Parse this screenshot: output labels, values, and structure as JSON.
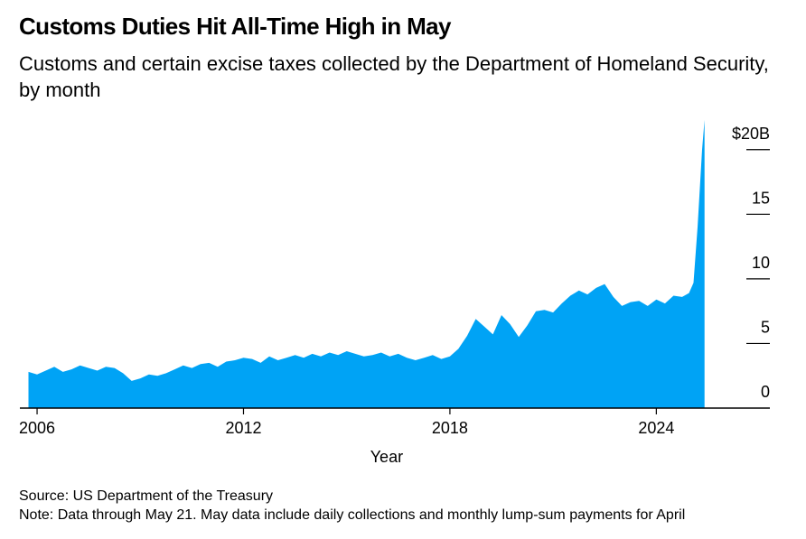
{
  "chart_data": {
    "type": "area",
    "title": "Customs Duties Hit All-Time High in May",
    "subtitle": "Customs and certain excise taxes collected by the Department of Homeland Security, by month",
    "xlabel": "Year",
    "ylabel": "",
    "x_ticks": [
      {
        "value": 2006,
        "label": "2006"
      },
      {
        "value": 2012,
        "label": "2012"
      },
      {
        "value": 2018,
        "label": "2018"
      },
      {
        "value": 2024,
        "label": "2024"
      }
    ],
    "y_ticks": [
      {
        "value": 0,
        "label": "0"
      },
      {
        "value": 5,
        "label": "5"
      },
      {
        "value": 10,
        "label": "10"
      },
      {
        "value": 15,
        "label": "15"
      },
      {
        "value": 20,
        "label": "$20B"
      }
    ],
    "xlim": [
      2005.5,
      2027.3
    ],
    "ylim": [
      0,
      22.5
    ],
    "grid": false,
    "color": "#00a3f5",
    "series": [
      {
        "x": [
          2005.75,
          2006.0,
          2006.25,
          2006.5,
          2006.75,
          2007.0,
          2007.25,
          2007.5,
          2007.75,
          2008.0,
          2008.25,
          2008.5,
          2008.75,
          2009.0,
          2009.25,
          2009.5,
          2009.75,
          2010.0,
          2010.25,
          2010.5,
          2010.75,
          2011.0,
          2011.25,
          2011.5,
          2011.75,
          2012.0,
          2012.25,
          2012.5,
          2012.75,
          2013.0,
          2013.25,
          2013.5,
          2013.75,
          2014.0,
          2014.25,
          2014.5,
          2014.75,
          2015.0,
          2015.25,
          2015.5,
          2015.75,
          2016.0,
          2016.25,
          2016.5,
          2016.75,
          2017.0,
          2017.25,
          2017.5,
          2017.75,
          2018.0,
          2018.25,
          2018.5,
          2018.75,
          2019.0,
          2019.25,
          2019.5,
          2019.75,
          2020.0,
          2020.25,
          2020.5,
          2020.75,
          2021.0,
          2021.25,
          2021.5,
          2021.75,
          2022.0,
          2022.25,
          2022.5,
          2022.75,
          2023.0,
          2023.25,
          2023.5,
          2023.75,
          2024.0,
          2024.25,
          2024.5,
          2024.75,
          2024.95,
          2025.08,
          2025.2,
          2025.33,
          2025.4
        ],
        "values": [
          2.8,
          2.6,
          2.9,
          3.2,
          2.8,
          3.0,
          3.3,
          3.1,
          2.9,
          3.2,
          3.1,
          2.7,
          2.1,
          2.3,
          2.6,
          2.5,
          2.7,
          3.0,
          3.3,
          3.1,
          3.4,
          3.5,
          3.2,
          3.6,
          3.7,
          3.9,
          3.8,
          3.5,
          4.0,
          3.7,
          3.9,
          4.1,
          3.9,
          4.2,
          4.0,
          4.3,
          4.1,
          4.4,
          4.2,
          4.0,
          4.1,
          4.3,
          4.0,
          4.2,
          3.9,
          3.7,
          3.9,
          4.1,
          3.8,
          4.0,
          4.6,
          5.6,
          6.9,
          6.3,
          5.7,
          7.2,
          6.5,
          5.5,
          6.4,
          7.5,
          7.6,
          7.4,
          8.1,
          8.7,
          9.1,
          8.8,
          9.3,
          9.6,
          8.6,
          7.9,
          8.2,
          8.3,
          7.9,
          8.4,
          8.1,
          8.7,
          8.6,
          8.9,
          9.7,
          14.0,
          20.0,
          22.3
        ]
      }
    ],
    "source": "Source: US Department of the Treasury",
    "note": "Note: Data through May 21. May data include daily collections and monthly lump-sum payments for April"
  }
}
